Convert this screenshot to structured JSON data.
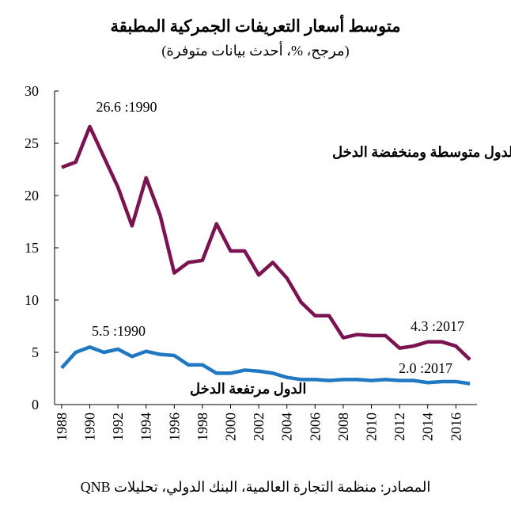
{
  "chart_data": {
    "type": "line",
    "title": "متوسط أسعار التعريفات الجمركية المطبقة",
    "subtitle": "(مرجح، %، أحدث بيانات متوفرة)",
    "source": "المصادر: منظمة التجارة العالمية، البنك الدولي، تحليلات QNB",
    "x": [
      1988,
      1989,
      1990,
      1991,
      1992,
      1993,
      1994,
      1995,
      1996,
      1997,
      1998,
      1999,
      2000,
      2001,
      2002,
      2003,
      2004,
      2005,
      2006,
      2007,
      2008,
      2009,
      2010,
      2011,
      2012,
      2013,
      2014,
      2015,
      2016,
      2017
    ],
    "series": [
      {
        "name": "الدول متوسطة ومنخفضة الدخل",
        "color": "#7b1350",
        "values": [
          22.7,
          23.2,
          26.6,
          23.7,
          20.8,
          17.1,
          21.7,
          18.1,
          12.6,
          13.6,
          13.8,
          17.3,
          14.7,
          14.7,
          12.4,
          13.6,
          12.1,
          9.8,
          8.5,
          8.5,
          6.4,
          6.7,
          6.6,
          6.6,
          5.4,
          5.6,
          6.0,
          6.0,
          5.6,
          4.3
        ]
      },
      {
        "name": "الدول مرتفعة الدخل",
        "color": "#1f78c1",
        "values": [
          3.5,
          5.0,
          5.5,
          5.0,
          5.3,
          4.6,
          5.1,
          4.8,
          4.7,
          3.8,
          3.8,
          3.0,
          3.0,
          3.3,
          3.2,
          3.0,
          2.6,
          2.4,
          2.4,
          2.3,
          2.4,
          2.4,
          2.3,
          2.4,
          2.3,
          2.3,
          2.1,
          2.2,
          2.2,
          2.0
        ]
      }
    ],
    "annotations": [
      "26.6 :1990",
      "5.5 :1990",
      "4.3 :2017",
      "2.0 :2017"
    ],
    "xlim": [
      1987.5,
      2017.5
    ],
    "xticks": [
      1988,
      1990,
      1992,
      1994,
      1996,
      1998,
      2000,
      2002,
      2004,
      2006,
      2008,
      2010,
      2012,
      2014,
      2016
    ],
    "ylim": [
      0,
      30
    ],
    "yticks": [
      0,
      5,
      10,
      15,
      20,
      25,
      30
    ],
    "grid": false
  }
}
